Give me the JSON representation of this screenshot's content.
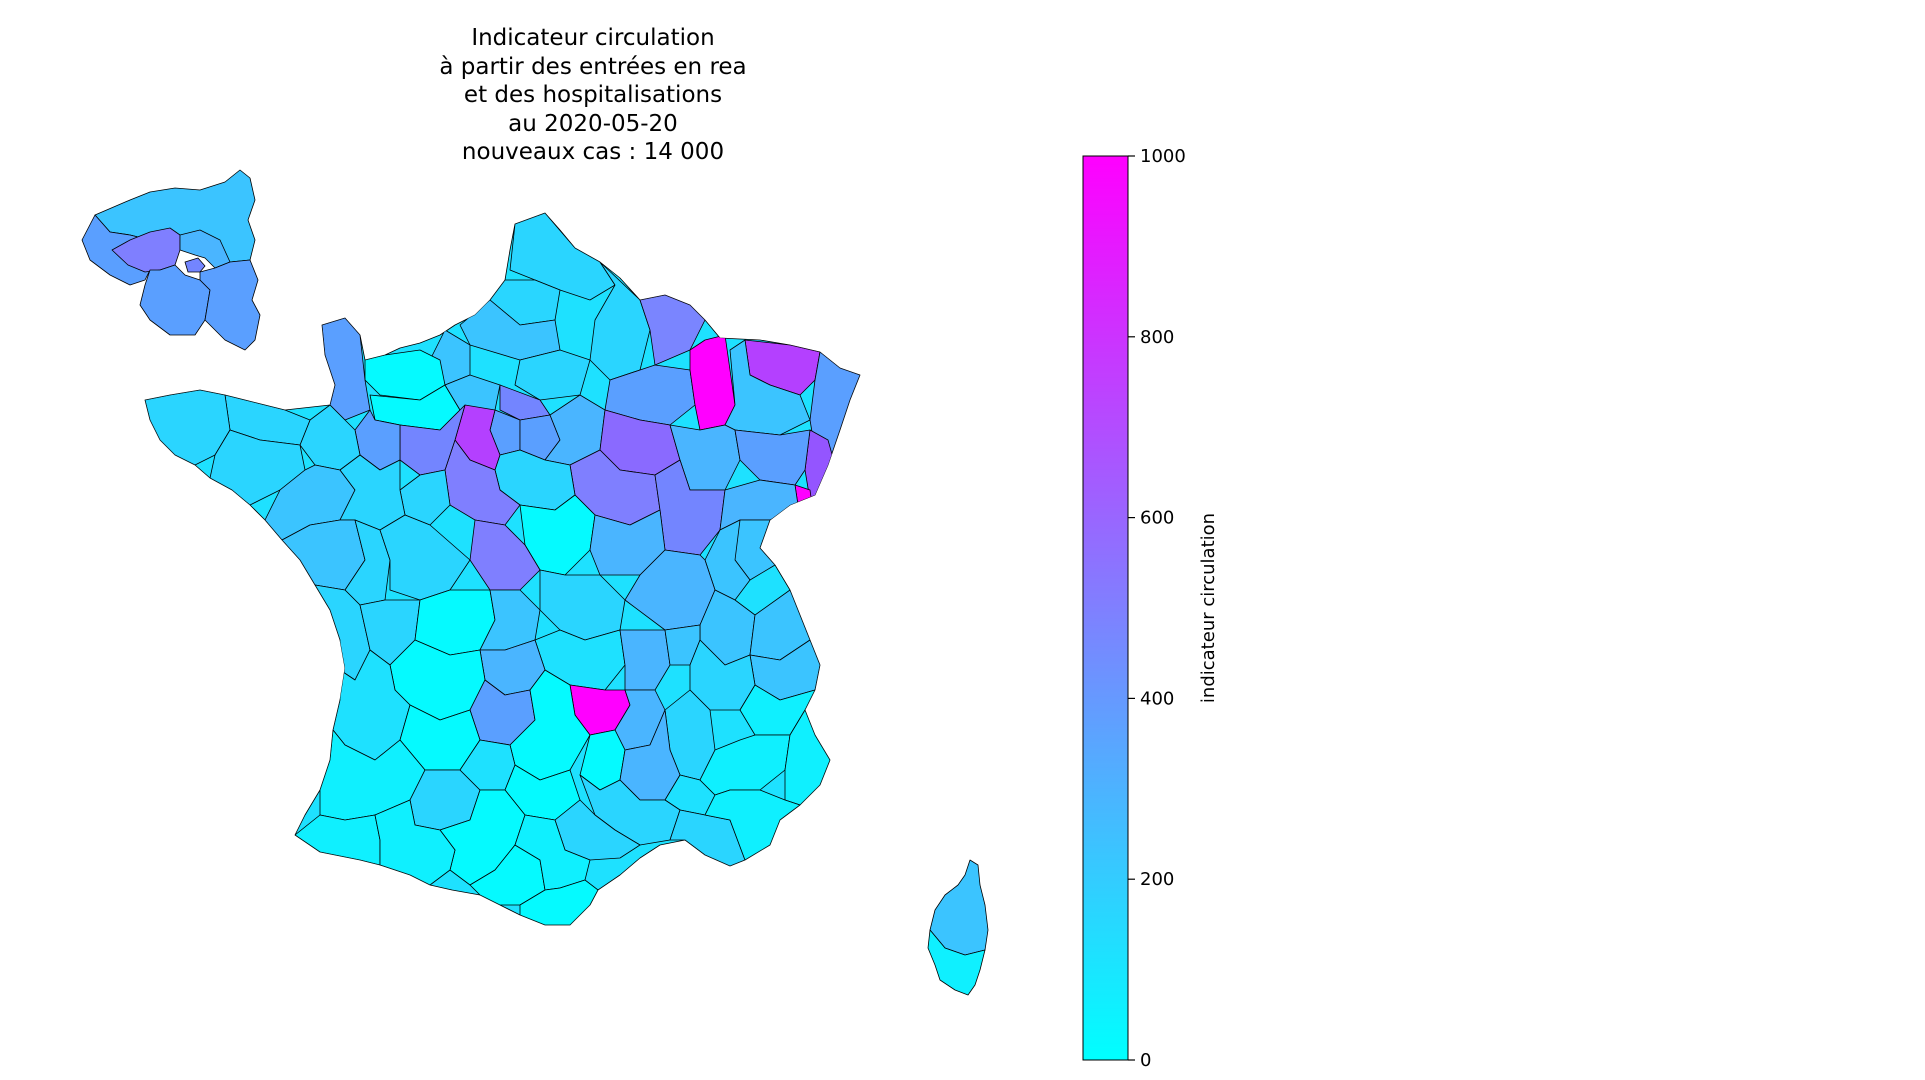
{
  "title": {
    "line1": "Indicateur circulation",
    "line2": "à partir des entrées en rea",
    "line3": "et des hospitalisations",
    "line4": "au 2020-05-20",
    "line5": "nouveaux cas : 14 000"
  },
  "colormap": {
    "name": "cool",
    "low": "#00ffff",
    "high": "#ff00ff",
    "min": 0,
    "max": 1000
  },
  "colorbar": {
    "label": "indicateur circulation",
    "ticks": [
      "0",
      "200",
      "400",
      "600",
      "800",
      "1000"
    ]
  },
  "regions_note": {
    "highest_departments_color": "#ff00ff",
    "idf_inset": "Île-de-France inset (top-left)",
    "corsica": "Corsica (bottom-right)"
  }
}
